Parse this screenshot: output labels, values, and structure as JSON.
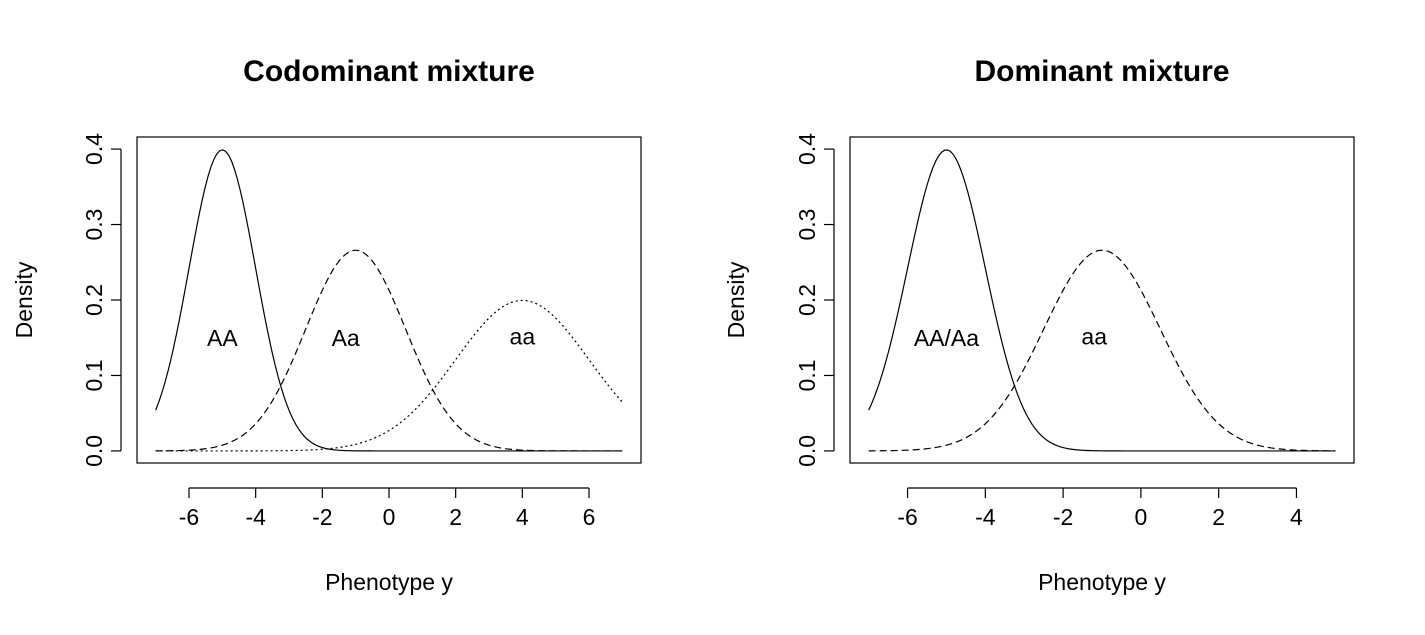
{
  "chart_data": [
    {
      "type": "line",
      "title": "Codominant mixture",
      "xlabel": "Phenotype y",
      "ylabel": "Density",
      "xlim": [
        -7,
        7
      ],
      "ylim": [
        0,
        0.4
      ],
      "x_ticks": [
        -6,
        -4,
        -2,
        0,
        2,
        4,
        6
      ],
      "x_tick_labels": [
        "-6",
        "-4",
        "-2",
        "0",
        "2",
        "4",
        "6"
      ],
      "y_ticks": [
        0.0,
        0.1,
        0.2,
        0.3,
        0.4
      ],
      "y_tick_labels": [
        "0.0",
        "0.1",
        "0.2",
        "0.3",
        "0.4"
      ],
      "grid": false,
      "series": [
        {
          "name": "AA",
          "distribution": "normal",
          "mean": -5,
          "sd": 1,
          "x_range": [
            -7,
            7
          ],
          "line_style": "solid",
          "color": "#000000"
        },
        {
          "name": "Aa",
          "distribution": "normal",
          "mean": -1,
          "sd": 1.5,
          "x_range": [
            -7,
            7
          ],
          "line_style": "dashed",
          "color": "#000000"
        },
        {
          "name": "aa",
          "distribution": "normal",
          "mean": 4,
          "sd": 2,
          "x_range": [
            -7,
            7
          ],
          "line_style": "dotted",
          "color": "#000000"
        }
      ],
      "annotations": [
        {
          "text": "AA",
          "x": -5,
          "y": 0.147
        },
        {
          "text": "Aa",
          "x": -1.3,
          "y": 0.147
        },
        {
          "text": "aa",
          "x": 4,
          "y": 0.149
        }
      ]
    },
    {
      "type": "line",
      "title": "Dominant mixture",
      "xlabel": "Phenotype y",
      "ylabel": "Density",
      "xlim": [
        -7,
        5
      ],
      "ylim": [
        0,
        0.4
      ],
      "x_ticks": [
        -6,
        -4,
        -2,
        0,
        2,
        4
      ],
      "x_tick_labels": [
        "-6",
        "-4",
        "-2",
        "0",
        "2",
        "4"
      ],
      "y_ticks": [
        0.0,
        0.1,
        0.2,
        0.3,
        0.4
      ],
      "y_tick_labels": [
        "0.0",
        "0.1",
        "0.2",
        "0.3",
        "0.4"
      ],
      "grid": false,
      "series": [
        {
          "name": "AA/Aa",
          "distribution": "normal",
          "mean": -5,
          "sd": 1,
          "x_range": [
            -7,
            5
          ],
          "line_style": "solid",
          "color": "#000000"
        },
        {
          "name": "aa",
          "distribution": "normal",
          "mean": -1,
          "sd": 1.5,
          "x_range": [
            -7,
            5
          ],
          "line_style": "dashed",
          "color": "#000000"
        }
      ],
      "annotations": [
        {
          "text": "AA/Aa",
          "x": -5,
          "y": 0.147
        },
        {
          "text": "aa",
          "x": -1.2,
          "y": 0.149
        }
      ]
    }
  ]
}
